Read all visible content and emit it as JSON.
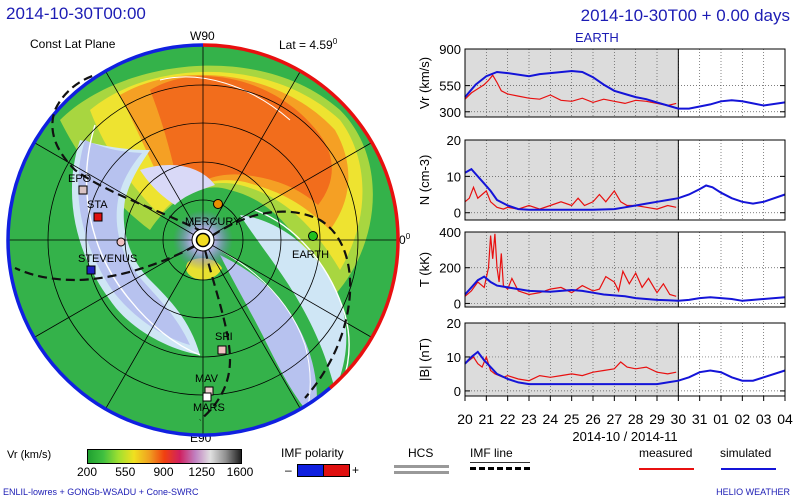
{
  "header": {
    "left_timestamp": "2014-10-30T00:00",
    "right_title": "2014-10-30T00 + 0.00 days",
    "panel_subtitle": "EARTH"
  },
  "polar": {
    "plane_label": "Const Lat Plane",
    "lat_label": "Lat = 4.59",
    "lat_sup": "0",
    "top_label": "W90",
    "right_label": "0",
    "right_sup": "0",
    "bottom_label": "E90",
    "bodies": [
      {
        "name": "EPO",
        "marker": "square",
        "color": "#d9c4c4"
      },
      {
        "name": "STA",
        "marker": "square",
        "color": "#e01010"
      },
      {
        "name": "STEVENUS",
        "marker": "square",
        "color": "#2020c0"
      },
      {
        "name": "MERCURY",
        "marker": "circle",
        "color": "#e89000"
      },
      {
        "name": "EARTH",
        "marker": "circle",
        "color": "#20c020"
      },
      {
        "name": "SPI",
        "marker": "square",
        "color": "#f0c0c0"
      },
      {
        "name": "MAV",
        "marker": "square",
        "color": "#f0d0d0"
      },
      {
        "name": "MARS",
        "marker": "square",
        "color": "#ffffff"
      }
    ]
  },
  "legend": {
    "colorbar_label": "Vr  (km/s)",
    "colorbar_ticks": [
      "200",
      "550",
      "900",
      "1250",
      "1600"
    ],
    "colorbar_stops": [
      "#20a030",
      "#40c040",
      "#a0e030",
      "#f0e020",
      "#f0a020",
      "#f04010",
      "#d02060",
      "#c080c0",
      "#e0e0e0",
      "#909090",
      "#202020"
    ],
    "imf_polarity_label": "IMF polarity",
    "imf_minus": "–",
    "imf_plus": "+",
    "imf_neg_color": "#1020e0",
    "imf_pos_color": "#e01010",
    "hcs_label": "HCS",
    "imf_line_label": "IMF line",
    "measured_label": "measured",
    "simulated_label": "simulated",
    "measured_color": "#e81010",
    "simulated_color": "#1414d8"
  },
  "footer": {
    "left": "ENLIL-lowres + GONGb-WSADU + Cone-SWRC",
    "right": "HELIO  WEATHER"
  },
  "chart_data": {
    "type": "line",
    "x_label": "2014-10 / 2014-11",
    "x_ticks": [
      "20",
      "21",
      "22",
      "23",
      "24",
      "25",
      "26",
      "27",
      "28",
      "29",
      "30",
      "31",
      "01",
      "02",
      "03",
      "04"
    ],
    "x_range": [
      20,
      35
    ],
    "measured_shaded_range": [
      20,
      30
    ],
    "panels": [
      {
        "ylabel": "Vr (km/s)",
        "yticks": [
          "300",
          "550",
          "900"
        ],
        "ylim": [
          250,
          900
        ],
        "tick_values": [
          300,
          550,
          900
        ],
        "series": [
          {
            "name": "measured",
            "x": [
              20.0,
              20.3,
              20.6,
              20.9,
              21.1,
              21.3,
              21.5,
              21.7,
              22.0,
              22.5,
              23.0,
              23.5,
              24.0,
              24.5,
              25.0,
              25.5,
              26.0,
              26.5,
              27.0,
              27.5,
              28.0,
              28.5,
              29.0,
              29.5,
              29.9
            ],
            "y": [
              420,
              480,
              520,
              560,
              600,
              650,
              580,
              500,
              470,
              450,
              430,
              420,
              460,
              410,
              400,
              430,
              390,
              420,
              400,
              380,
              410,
              400,
              380,
              360,
              380
            ]
          },
          {
            "name": "simulated",
            "x": [
              20.0,
              20.5,
              21.0,
              21.5,
              22.0,
              23.0,
              23.5,
              24.0,
              25.0,
              25.5,
              26.0,
              26.5,
              27.0,
              27.5,
              28.0,
              28.5,
              29.0,
              29.5,
              30.0,
              30.5,
              31.0,
              31.5,
              32.0,
              32.5,
              33.0,
              33.5,
              34.0,
              35.0
            ],
            "y": [
              440,
              560,
              640,
              680,
              670,
              640,
              660,
              670,
              690,
              680,
              630,
              560,
              500,
              470,
              440,
              420,
              390,
              360,
              330,
              330,
              350,
              370,
              400,
              410,
              400,
              380,
              360,
              390
            ]
          }
        ]
      },
      {
        "ylabel": "N (cm-3)",
        "yticks": [
          "0",
          "10",
          "20"
        ],
        "ylim": [
          -2,
          20
        ],
        "tick_values": [
          0,
          10,
          20
        ],
        "series": [
          {
            "name": "measured",
            "x": [
              20.0,
              20.2,
              20.4,
              20.6,
              20.8,
              21.0,
              21.2,
              21.5,
              21.8,
              22.0,
              22.5,
              23.0,
              23.5,
              24.0,
              24.5,
              25.0,
              25.3,
              25.6,
              26.0,
              26.3,
              26.6,
              27.0,
              27.3,
              27.6,
              28.0,
              28.5,
              29.0,
              29.5,
              29.9
            ],
            "y": [
              3,
              4,
              7,
              4,
              5,
              6,
              3,
              1.5,
              1,
              1.5,
              1,
              2,
              1,
              2,
              3,
              2,
              4,
              2,
              3,
              5,
              3,
              6,
              3,
              2,
              2,
              1.5,
              1,
              2,
              1.5
            ]
          },
          {
            "name": "simulated",
            "x": [
              20.0,
              20.3,
              20.6,
              20.9,
              21.2,
              21.5,
              22.0,
              22.5,
              23.0,
              24.0,
              25.0,
              26.0,
              27.0,
              27.5,
              28.0,
              28.5,
              29.0,
              29.5,
              30.0,
              30.5,
              31.0,
              31.3,
              31.6,
              32.0,
              32.5,
              33.0,
              33.5,
              34.0,
              35.0
            ],
            "y": [
              11,
              12,
              10,
              8,
              6,
              3.5,
              2,
              1,
              0.8,
              0.8,
              0.8,
              0.8,
              1,
              1.5,
              2,
              2.5,
              3,
              3.5,
              4,
              5,
              6.5,
              7.5,
              7,
              5.5,
              4,
              3,
              2.5,
              3,
              5
            ]
          }
        ]
      },
      {
        "ylabel": "T (kK)",
        "yticks": [
          "0",
          "200",
          "400"
        ],
        "ylim": [
          -20,
          400
        ],
        "tick_values": [
          0,
          200,
          400
        ],
        "series": [
          {
            "name": "measured",
            "x": [
              20.0,
              20.3,
              20.6,
              20.9,
              21.1,
              21.2,
              21.3,
              21.4,
              21.5,
              21.6,
              21.7,
              21.8,
              22.0,
              22.2,
              22.5,
              23.0,
              23.5,
              24.0,
              24.5,
              25.0,
              25.5,
              26.0,
              26.3,
              26.6,
              27.0,
              27.2,
              27.4,
              27.7,
              28.0,
              28.3,
              28.6,
              29.0,
              29.3,
              29.6,
              29.9
            ],
            "y": [
              40,
              70,
              120,
              90,
              200,
              380,
              250,
              390,
              200,
              120,
              280,
              100,
              80,
              140,
              70,
              50,
              60,
              80,
              90,
              60,
              100,
              70,
              80,
              150,
              120,
              70,
              180,
              110,
              170,
              90,
              140,
              60,
              110,
              50,
              40
            ]
          },
          {
            "name": "simulated",
            "x": [
              20.0,
              20.3,
              20.6,
              20.9,
              21.2,
              21.5,
              22.0,
              22.5,
              23.0,
              24.0,
              25.0,
              25.5,
              26.0,
              26.5,
              27.0,
              27.5,
              28.0,
              28.5,
              29.0,
              29.5,
              30.0,
              30.5,
              31.0,
              31.5,
              32.0,
              32.5,
              33.0,
              33.5,
              34.0,
              35.0
            ],
            "y": [
              50,
              90,
              130,
              150,
              120,
              100,
              90,
              80,
              70,
              65,
              75,
              70,
              60,
              50,
              45,
              40,
              30,
              25,
              20,
              18,
              15,
              20,
              30,
              35,
              30,
              25,
              15,
              20,
              25,
              35
            ]
          }
        ]
      },
      {
        "ylabel": "|B| (nT)",
        "yticks": [
          "0",
          "10",
          "20"
        ],
        "ylim": [
          -1.5,
          20
        ],
        "tick_values": [
          0,
          10,
          20
        ],
        "series": [
          {
            "name": "measured",
            "x": [
              20.0,
              20.2,
              20.4,
              20.6,
              20.8,
              21.0,
              21.2,
              21.4,
              21.6,
              21.8,
              22.0,
              22.5,
              23.0,
              23.5,
              24.0,
              24.5,
              25.0,
              25.5,
              26.0,
              26.5,
              27.0,
              27.3,
              27.6,
              28.0,
              28.5,
              29.0,
              29.5,
              29.9
            ],
            "y": [
              8,
              9,
              10,
              8,
              7,
              10,
              6,
              5,
              4.5,
              4,
              4.5,
              3.5,
              3,
              4.5,
              4,
              4.5,
              5,
              4.5,
              5.5,
              6,
              6.5,
              8.5,
              7,
              6.5,
              7,
              5.5,
              5,
              5.5
            ]
          },
          {
            "name": "simulated",
            "x": [
              20.0,
              20.3,
              20.6,
              20.9,
              21.2,
              21.5,
              22.0,
              22.5,
              23.0,
              24.0,
              25.0,
              26.0,
              27.0,
              28.0,
              29.0,
              29.5,
              30.0,
              30.5,
              31.0,
              31.5,
              32.0,
              32.5,
              33.0,
              33.5,
              34.0,
              35.0
            ],
            "y": [
              8,
              10,
              11.5,
              9,
              7,
              5,
              3.5,
              2.5,
              2,
              2,
              2,
              2,
              2,
              2,
              2,
              2.5,
              3,
              4,
              5.5,
              6,
              5.5,
              4,
              3,
              3,
              4,
              6
            ]
          }
        ]
      }
    ]
  }
}
